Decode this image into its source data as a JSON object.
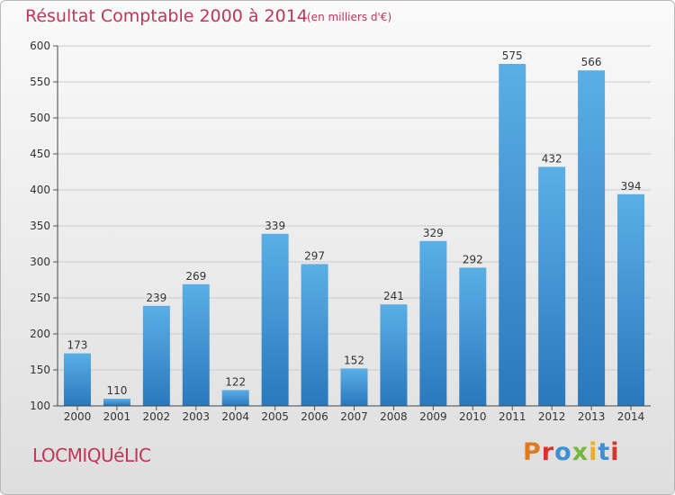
{
  "header": {
    "title": "Résultat Comptable 2000 à 2014",
    "subtitle": "(en milliers d'€)"
  },
  "footer": {
    "commune": "LOCMIQUéLIC",
    "logo_text": "Proxiti",
    "logo_colors": [
      "#e07b22",
      "#d8342e",
      "#3f8fd3",
      "#79b63c",
      "#e9b11f",
      "#3f8fd3",
      "#d8342e"
    ]
  },
  "colors": {
    "bar_light": "#5aafe6",
    "bar_dark": "#2a78bd",
    "title": "#c0355a",
    "grid": "#cccccc"
  },
  "chart_data": {
    "type": "bar",
    "title": "Résultat Comptable 2000 à 2014",
    "subtitle": "(en milliers d'€)",
    "categories": [
      "2000",
      "2001",
      "2002",
      "2003",
      "2004",
      "2005",
      "2006",
      "2007",
      "2008",
      "2009",
      "2010",
      "2011",
      "2012",
      "2013",
      "2014"
    ],
    "values": [
      173,
      110,
      239,
      269,
      122,
      339,
      297,
      152,
      241,
      329,
      292,
      575,
      432,
      566,
      394
    ],
    "ylim": [
      100,
      600
    ],
    "yticks": [
      100,
      150,
      200,
      250,
      300,
      350,
      400,
      450,
      500,
      550,
      600
    ],
    "grid": true,
    "data_labels": true
  }
}
